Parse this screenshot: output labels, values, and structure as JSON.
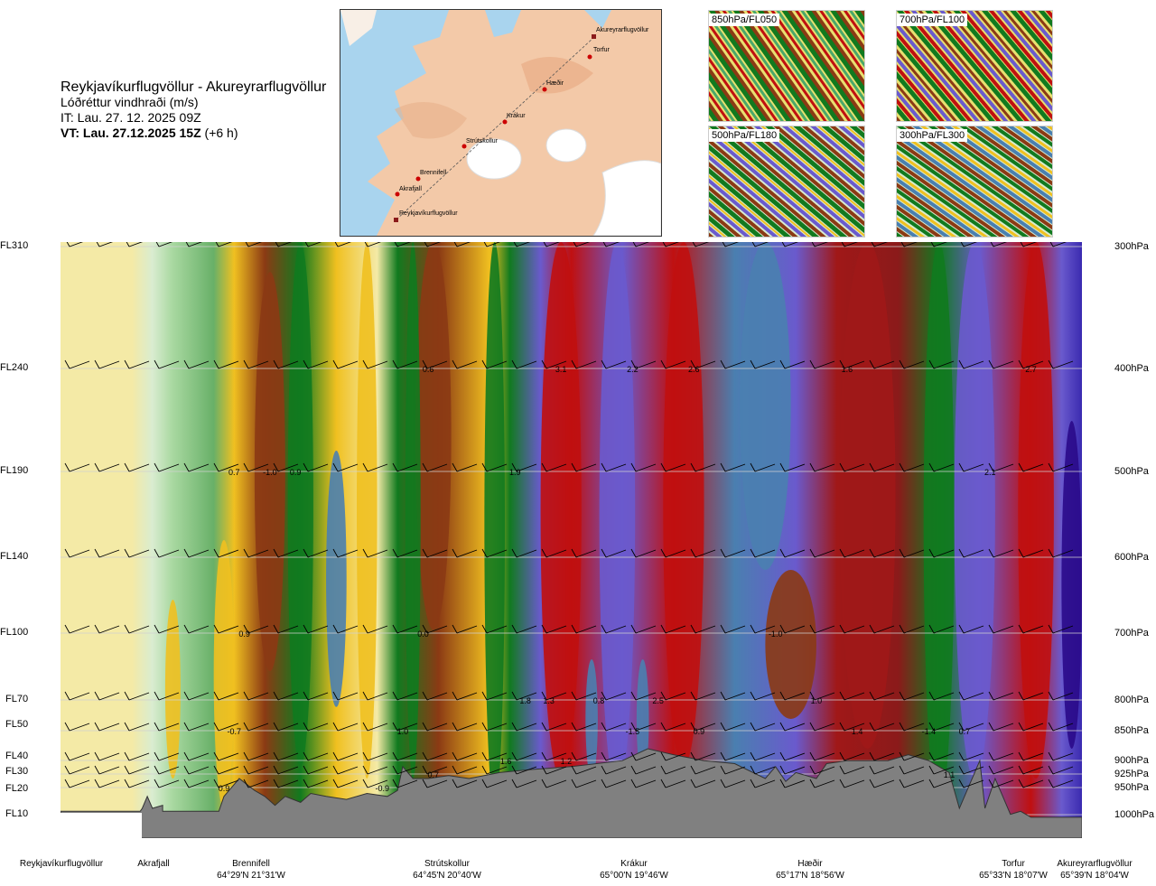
{
  "header": {
    "route": "Reykjavíkurflugvöllur - Akureyrarflugvöllur",
    "variable": "Lóðréttur vindhraði (m/s)",
    "it": "IT: Lau. 27. 12. 2025 09Z",
    "vt_bold": "VT: Lau. 27.12.2025 15Z",
    "vt_offset": " (+6 h)"
  },
  "route_map": {
    "points": [
      {
        "name": "Akureyrarflugvöllur"
      },
      {
        "name": "Torfur"
      },
      {
        "name": "Hæðir"
      },
      {
        "name": "Krákur"
      },
      {
        "name": "Strútskollur"
      },
      {
        "name": "Brennifell"
      },
      {
        "name": "Akrafjall"
      },
      {
        "name": "Reykjavíkurflugvöllur"
      }
    ]
  },
  "mini_maps": [
    {
      "label": "850hPa/FL050"
    },
    {
      "label": "700hPa/FL100"
    },
    {
      "label": "500hPa/FL180"
    },
    {
      "label": "300hPa/FL300"
    }
  ],
  "levels": [
    {
      "fl": "FL310",
      "hpa": "300hPa"
    },
    {
      "fl": "FL240",
      "hpa": "400hPa"
    },
    {
      "fl": "FL190",
      "hpa": "500hPa"
    },
    {
      "fl": "FL140",
      "hpa": "600hPa"
    },
    {
      "fl": "FL100",
      "hpa": "700hPa"
    },
    {
      "fl": "FL70",
      "hpa": "800hPa"
    },
    {
      "fl": "FL50",
      "hpa": "850hPa"
    },
    {
      "fl": "FL40",
      "hpa": "900hPa"
    },
    {
      "fl": "FL30",
      "hpa": "925hPa"
    },
    {
      "fl": "FL20",
      "hpa": "950hPa"
    },
    {
      "fl": "FL10",
      "hpa": "1000hPa"
    }
  ],
  "waypoints": [
    {
      "name": "Reykjavíkurflugvöllur",
      "coord": ""
    },
    {
      "name": "Akrafjall",
      "coord": ""
    },
    {
      "name": "Brennifell",
      "coord": "64°29'N 21°31'W"
    },
    {
      "name": "Strútskollur",
      "coord": "64°45'N 20°40'W"
    },
    {
      "name": "Krákur",
      "coord": "65°00'N 19°46'W"
    },
    {
      "name": "Hæðir",
      "coord": "65°17'N 18°56'W"
    },
    {
      "name": "Torfur",
      "coord": "65°33'N 18°07'W"
    },
    {
      "name": "Akureyrarflugvöllur",
      "coord": "65°39'N 18°04'W"
    }
  ],
  "chart_data": {
    "type": "heatmap",
    "title": "Lóðréttur vindhraði (m/s)",
    "y_levels_hpa": [
      300,
      400,
      500,
      600,
      700,
      800,
      850,
      900,
      925,
      950,
      1000
    ],
    "y_levels_fl": [
      "FL310",
      "FL240",
      "FL190",
      "FL140",
      "FL100",
      "FL70",
      "FL50",
      "FL40",
      "FL30",
      "FL20",
      "FL10"
    ],
    "x_waypoints": [
      "Reykjavíkurflugvöllur",
      "Akrafjall",
      "Brennifell",
      "Strútskollur",
      "Krákur",
      "Hæðir",
      "Torfur",
      "Akureyrarflugvöllur"
    ],
    "annotations": [
      {
        "x": 0.36,
        "level": 400,
        "text": "0.6"
      },
      {
        "x": 0.49,
        "level": 400,
        "text": "3.1"
      },
      {
        "x": 0.56,
        "level": 400,
        "text": "2.2"
      },
      {
        "x": 0.62,
        "level": 400,
        "text": "2.6"
      },
      {
        "x": 0.77,
        "level": 400,
        "text": "1.6"
      },
      {
        "x": 0.95,
        "level": 400,
        "text": "2.7"
      },
      {
        "x": 0.17,
        "level": 500,
        "text": "0.7"
      },
      {
        "x": 0.205,
        "level": 500,
        "text": "-1.0"
      },
      {
        "x": 0.23,
        "level": 500,
        "text": "0.9"
      },
      {
        "x": 0.445,
        "level": 500,
        "text": "1.9"
      },
      {
        "x": 0.91,
        "level": 500,
        "text": "2.1"
      },
      {
        "x": 0.18,
        "level": 700,
        "text": "0.9"
      },
      {
        "x": 0.355,
        "level": 700,
        "text": "0.0"
      },
      {
        "x": 0.7,
        "level": 700,
        "text": "-1.0"
      },
      {
        "x": 0.455,
        "level": 800,
        "text": "1.8"
      },
      {
        "x": 0.478,
        "level": 800,
        "text": "1.3"
      },
      {
        "x": 0.527,
        "level": 800,
        "text": "0.8"
      },
      {
        "x": 0.585,
        "level": 800,
        "text": "2.5"
      },
      {
        "x": 0.74,
        "level": 800,
        "text": "1.0"
      },
      {
        "x": 0.17,
        "level": 850,
        "text": "-0.7"
      },
      {
        "x": 0.335,
        "level": 850,
        "text": "1.0"
      },
      {
        "x": 0.56,
        "level": 850,
        "text": "-1.5"
      },
      {
        "x": 0.625,
        "level": 850,
        "text": "0.9"
      },
      {
        "x": 0.78,
        "level": 850,
        "text": "1.4"
      },
      {
        "x": 0.85,
        "level": 850,
        "text": "-1.4"
      },
      {
        "x": 0.885,
        "level": 850,
        "text": "0.7"
      },
      {
        "x": 0.436,
        "level": 900,
        "text": "1.6"
      },
      {
        "x": 0.495,
        "level": 900,
        "text": "1.2"
      },
      {
        "x": 0.365,
        "level": 925,
        "text": "0.7"
      },
      {
        "x": 0.87,
        "level": 925,
        "text": "1.1"
      },
      {
        "x": 0.16,
        "level": 950,
        "text": "0.9"
      },
      {
        "x": 0.315,
        "level": 950,
        "text": "-0.9"
      }
    ],
    "grid": true,
    "colors": {
      "strong_down": "#2a0a8a",
      "moderate_down": "#6a5acd",
      "weak_down": "#4a7fb0",
      "near_zero_dark_green": "#117a1f",
      "near_zero_green": "#4aa86a",
      "near_zero_pale": "#d9ecd0",
      "weak_up": "#f0c020",
      "moderate_up": "#8b3a14",
      "strong_up": "#c01010",
      "terrain": "#808080"
    }
  }
}
